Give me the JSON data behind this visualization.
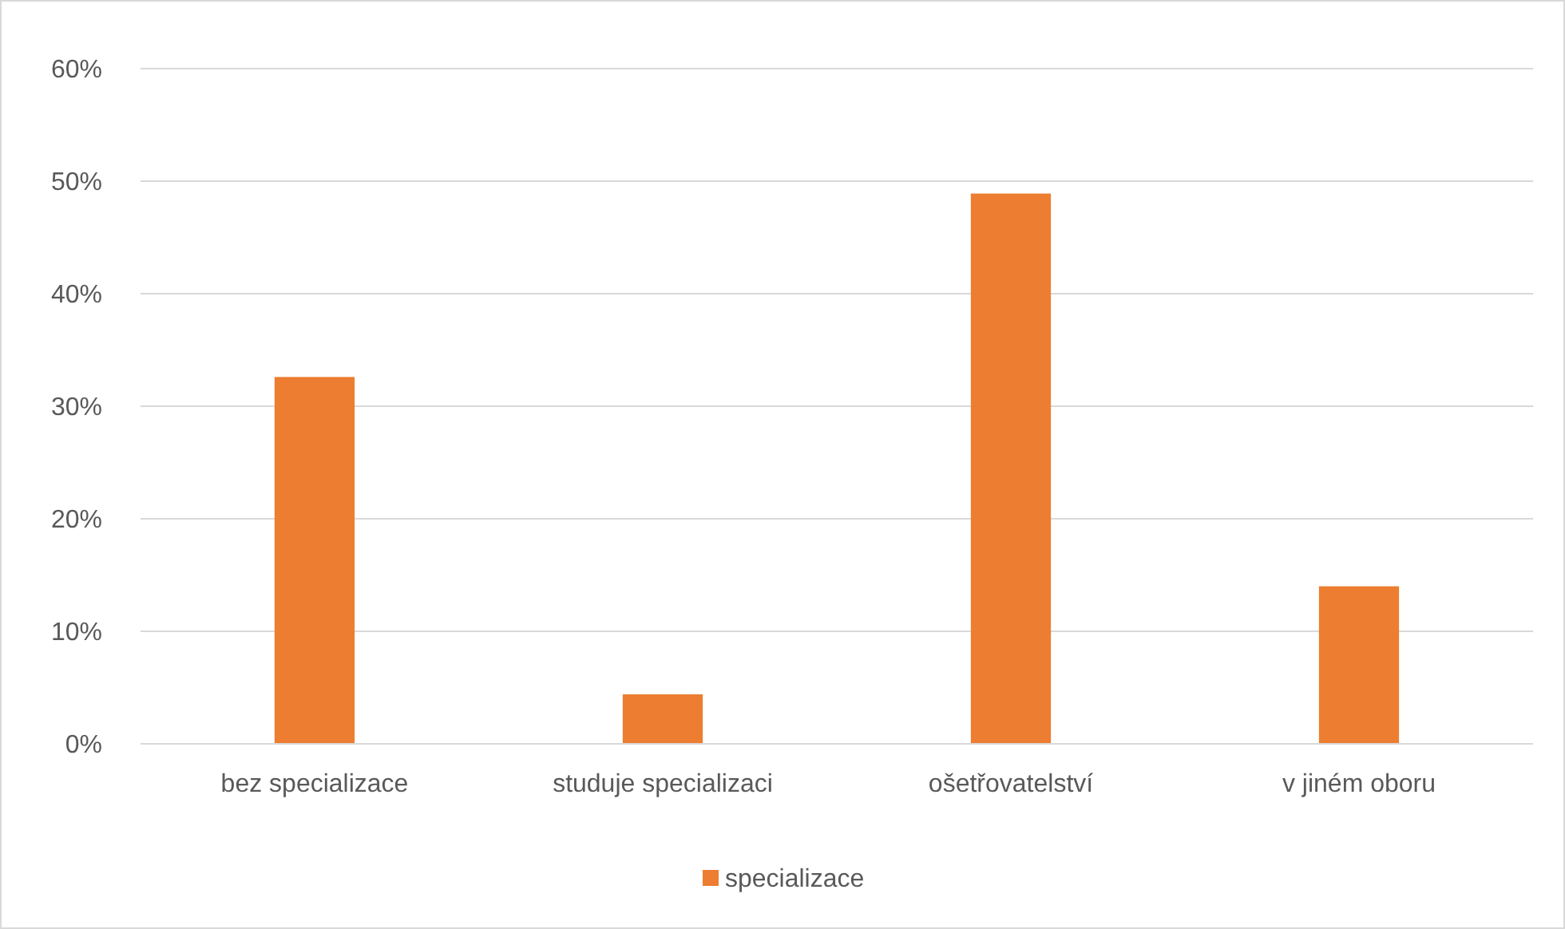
{
  "chart_data": {
    "type": "bar",
    "categories": [
      "bez specializace",
      "studuje specializaci",
      "ošetřovatelství",
      "v jiném oboru"
    ],
    "series": [
      {
        "name": "specializace",
        "color": "#ed7d31",
        "values": [
          32.6,
          4.4,
          48.9,
          14.0
        ]
      }
    ],
    "ylim": [
      0,
      60
    ],
    "yticks": [
      {
        "value": 0,
        "label": "0%"
      },
      {
        "value": 10,
        "label": "10%"
      },
      {
        "value": 20,
        "label": "20%"
      },
      {
        "value": 30,
        "label": "30%"
      },
      {
        "value": 40,
        "label": "40%"
      },
      {
        "value": 50,
        "label": "50%"
      },
      {
        "value": 60,
        "label": "60%"
      }
    ],
    "grid": "y",
    "legend": "bottom"
  }
}
